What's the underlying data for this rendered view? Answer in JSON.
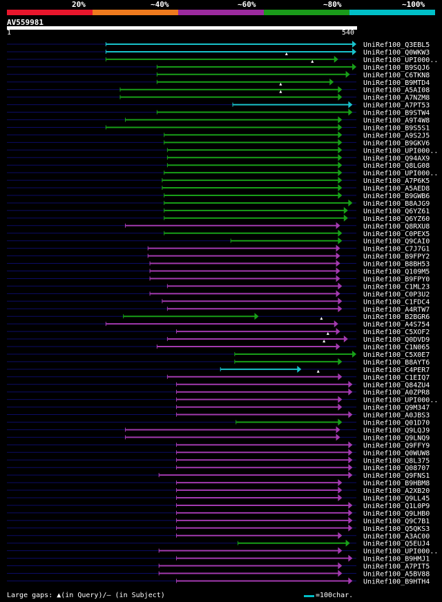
{
  "legend": {
    "segments": [
      {
        "label": "20%",
        "color": "#e8162c"
      },
      {
        "label": "~40%",
        "color": "#ee7a1e"
      },
      {
        "label": "~60%",
        "color": "#9b2a9e"
      },
      {
        "label": "~80%",
        "color": "#1a9a1a"
      },
      {
        "label": "~100%",
        "color": "#00bfc8"
      }
    ]
  },
  "query": {
    "name": "AV559981",
    "length": 540,
    "start_label": "1",
    "end_label": "540"
  },
  "colors": {
    "cyan": "#19c3cc",
    "green": "#18a018",
    "purple": "#a33ab0",
    "track": "#0c0c66"
  },
  "hits": [
    {
      "id": "UniRef100_Q3EBL5",
      "start": 153,
      "end": 540,
      "color": "cyan"
    },
    {
      "id": "UniRef100_Q0WKW3",
      "start": 153,
      "end": 540,
      "color": "cyan"
    },
    {
      "id": "UniRef100_UPI000..",
      "start": 153,
      "end": 512,
      "color": "green",
      "gap": 432
    },
    {
      "id": "UniRef100_B9SQJ6",
      "start": 232,
      "end": 540,
      "color": "green",
      "gap": 472
    },
    {
      "id": "UniRef100_C6TKN8",
      "start": 232,
      "end": 530,
      "color": "green"
    },
    {
      "id": "UniRef100_B9MTD4",
      "start": 232,
      "end": 505,
      "color": "green"
    },
    {
      "id": "UniRef100_A5AI08",
      "start": 175,
      "end": 518,
      "color": "green",
      "gap": 423
    },
    {
      "id": "UniRef100_A7NZM8",
      "start": 175,
      "end": 518,
      "color": "green",
      "gap": 423
    },
    {
      "id": "UniRef100_A7PT53",
      "start": 349,
      "end": 534,
      "color": "cyan"
    },
    {
      "id": "UniRef100_B9STW4",
      "start": 232,
      "end": 534,
      "color": "green"
    },
    {
      "id": "UniRef100_A9T4W8",
      "start": 183,
      "end": 518,
      "color": "green"
    },
    {
      "id": "UniRef100_B9S5S1",
      "start": 153,
      "end": 518,
      "color": "green"
    },
    {
      "id": "UniRef100_A9S2J5",
      "start": 243,
      "end": 518,
      "color": "green"
    },
    {
      "id": "UniRef100_B9GKV6",
      "start": 243,
      "end": 518,
      "color": "green"
    },
    {
      "id": "UniRef100_UPI000..",
      "start": 248,
      "end": 518,
      "color": "green"
    },
    {
      "id": "UniRef100_Q94AX9",
      "start": 248,
      "end": 518,
      "color": "green"
    },
    {
      "id": "UniRef100_Q8LG08",
      "start": 248,
      "end": 518,
      "color": "green"
    },
    {
      "id": "UniRef100_UPI000..",
      "start": 243,
      "end": 518,
      "color": "green"
    },
    {
      "id": "UniRef100_A7P6K5",
      "start": 240,
      "end": 518,
      "color": "green"
    },
    {
      "id": "UniRef100_A5AED8",
      "start": 240,
      "end": 518,
      "color": "green"
    },
    {
      "id": "UniRef100_B9GWB6",
      "start": 243,
      "end": 518,
      "color": "green"
    },
    {
      "id": "UniRef100_B8AJG9",
      "start": 243,
      "end": 534,
      "color": "green"
    },
    {
      "id": "UniRef100_Q6YZ61",
      "start": 243,
      "end": 527,
      "color": "green"
    },
    {
      "id": "UniRef100_Q6YZ60",
      "start": 243,
      "end": 527,
      "color": "green"
    },
    {
      "id": "UniRef100_Q8RXU8",
      "start": 183,
      "end": 515,
      "color": "purple"
    },
    {
      "id": "UniRef100_C0PEX5",
      "start": 243,
      "end": 518,
      "color": "green"
    },
    {
      "id": "UniRef100_Q9CAI0",
      "start": 346,
      "end": 518,
      "color": "green"
    },
    {
      "id": "UniRef100_C7J7G1",
      "start": 218,
      "end": 515,
      "color": "purple"
    },
    {
      "id": "UniRef100_B9FPY2",
      "start": 218,
      "end": 515,
      "color": "purple"
    },
    {
      "id": "UniRef100_B8BH53",
      "start": 221,
      "end": 515,
      "color": "purple"
    },
    {
      "id": "UniRef100_Q109M5",
      "start": 221,
      "end": 515,
      "color": "purple"
    },
    {
      "id": "UniRef100_B9FPY0",
      "start": 221,
      "end": 515,
      "color": "purple"
    },
    {
      "id": "UniRef100_C1ML23",
      "start": 248,
      "end": 518,
      "color": "purple"
    },
    {
      "id": "UniRef100_C0P3U2",
      "start": 221,
      "end": 515,
      "color": "purple"
    },
    {
      "id": "UniRef100_C1FDC4",
      "start": 240,
      "end": 518,
      "color": "purple"
    },
    {
      "id": "UniRef100_A4RTW7",
      "start": 248,
      "end": 518,
      "color": "purple"
    },
    {
      "id": "UniRef100_B2BGR6",
      "start": 180,
      "end": 389,
      "color": "green"
    },
    {
      "id": "UniRef100_A4S754",
      "start": 153,
      "end": 512,
      "color": "purple",
      "gap": 486
    },
    {
      "id": "UniRef100_C5XOF2",
      "start": 262,
      "end": 515,
      "color": "purple"
    },
    {
      "id": "UniRef100_Q0DVD9",
      "start": 248,
      "end": 527,
      "color": "purple",
      "gap": 496
    },
    {
      "id": "UniRef100_C1N065",
      "start": 232,
      "end": 515,
      "color": "purple",
      "gap": 490
    },
    {
      "id": "UniRef100_C5X0E7",
      "start": 352,
      "end": 540,
      "color": "green"
    },
    {
      "id": "UniRef100_B8AYT6",
      "start": 352,
      "end": 518,
      "color": "green"
    },
    {
      "id": "UniRef100_C4PER7",
      "start": 330,
      "end": 455,
      "color": "cyan"
    },
    {
      "id": "UniRef100_C1EIQ7",
      "start": 248,
      "end": 518,
      "color": "purple",
      "gap": 481
    },
    {
      "id": "UniRef100_Q84ZU4",
      "start": 262,
      "end": 534,
      "color": "purple"
    },
    {
      "id": "UniRef100_A0ZPR8",
      "start": 262,
      "end": 534,
      "color": "purple"
    },
    {
      "id": "UniRef100_UPI000..",
      "start": 262,
      "end": 518,
      "color": "purple"
    },
    {
      "id": "UniRef100_Q9M347",
      "start": 262,
      "end": 518,
      "color": "purple"
    },
    {
      "id": "UniRef100_A0JBS3",
      "start": 262,
      "end": 534,
      "color": "purple"
    },
    {
      "id": "UniRef100_Q01D70",
      "start": 354,
      "end": 518,
      "color": "green"
    },
    {
      "id": "UniRef100_Q9LQJ9",
      "start": 183,
      "end": 515,
      "color": "purple"
    },
    {
      "id": "UniRef100_Q9LNQ9",
      "start": 183,
      "end": 515,
      "color": "purple"
    },
    {
      "id": "UniRef100_Q9FFY9",
      "start": 262,
      "end": 534,
      "color": "purple"
    },
    {
      "id": "UniRef100_Q0WUW8",
      "start": 262,
      "end": 534,
      "color": "purple"
    },
    {
      "id": "UniRef100_Q8L375",
      "start": 262,
      "end": 534,
      "color": "purple"
    },
    {
      "id": "UniRef100_Q08707",
      "start": 262,
      "end": 534,
      "color": "purple"
    },
    {
      "id": "UniRef100_Q9FNS1",
      "start": 235,
      "end": 534,
      "color": "purple"
    },
    {
      "id": "UniRef100_B9HBM8",
      "start": 262,
      "end": 518,
      "color": "purple"
    },
    {
      "id": "UniRef100_A2XB20",
      "start": 262,
      "end": 518,
      "color": "purple"
    },
    {
      "id": "UniRef100_Q9LL45",
      "start": 262,
      "end": 518,
      "color": "purple"
    },
    {
      "id": "UniRef100_Q1L0P9",
      "start": 262,
      "end": 534,
      "color": "purple"
    },
    {
      "id": "UniRef100_Q9LHB0",
      "start": 262,
      "end": 534,
      "color": "purple"
    },
    {
      "id": "UniRef100_Q9C7B1",
      "start": 262,
      "end": 534,
      "color": "purple"
    },
    {
      "id": "UniRef100_Q5QKS3",
      "start": 262,
      "end": 534,
      "color": "purple"
    },
    {
      "id": "UniRef100_A3AC00",
      "start": 262,
      "end": 518,
      "color": "purple"
    },
    {
      "id": "UniRef100_Q5EUJ4",
      "start": 357,
      "end": 530,
      "color": "green"
    },
    {
      "id": "UniRef100_UPI000..",
      "start": 235,
      "end": 518,
      "color": "purple"
    },
    {
      "id": "UniRef100_B9HMJ1",
      "start": 262,
      "end": 534,
      "color": "purple"
    },
    {
      "id": "UniRef100_A7PIT5",
      "start": 235,
      "end": 518,
      "color": "purple"
    },
    {
      "id": "UniRef100_A5BV88",
      "start": 235,
      "end": 518,
      "color": "purple"
    },
    {
      "id": "UniRef100_B9HTH4",
      "start": 262,
      "end": 534,
      "color": "purple"
    }
  ],
  "footer": {
    "gaps_text": "Large gaps: ▲(in Query)/— (in Subject)",
    "scale_text": "=100char."
  }
}
